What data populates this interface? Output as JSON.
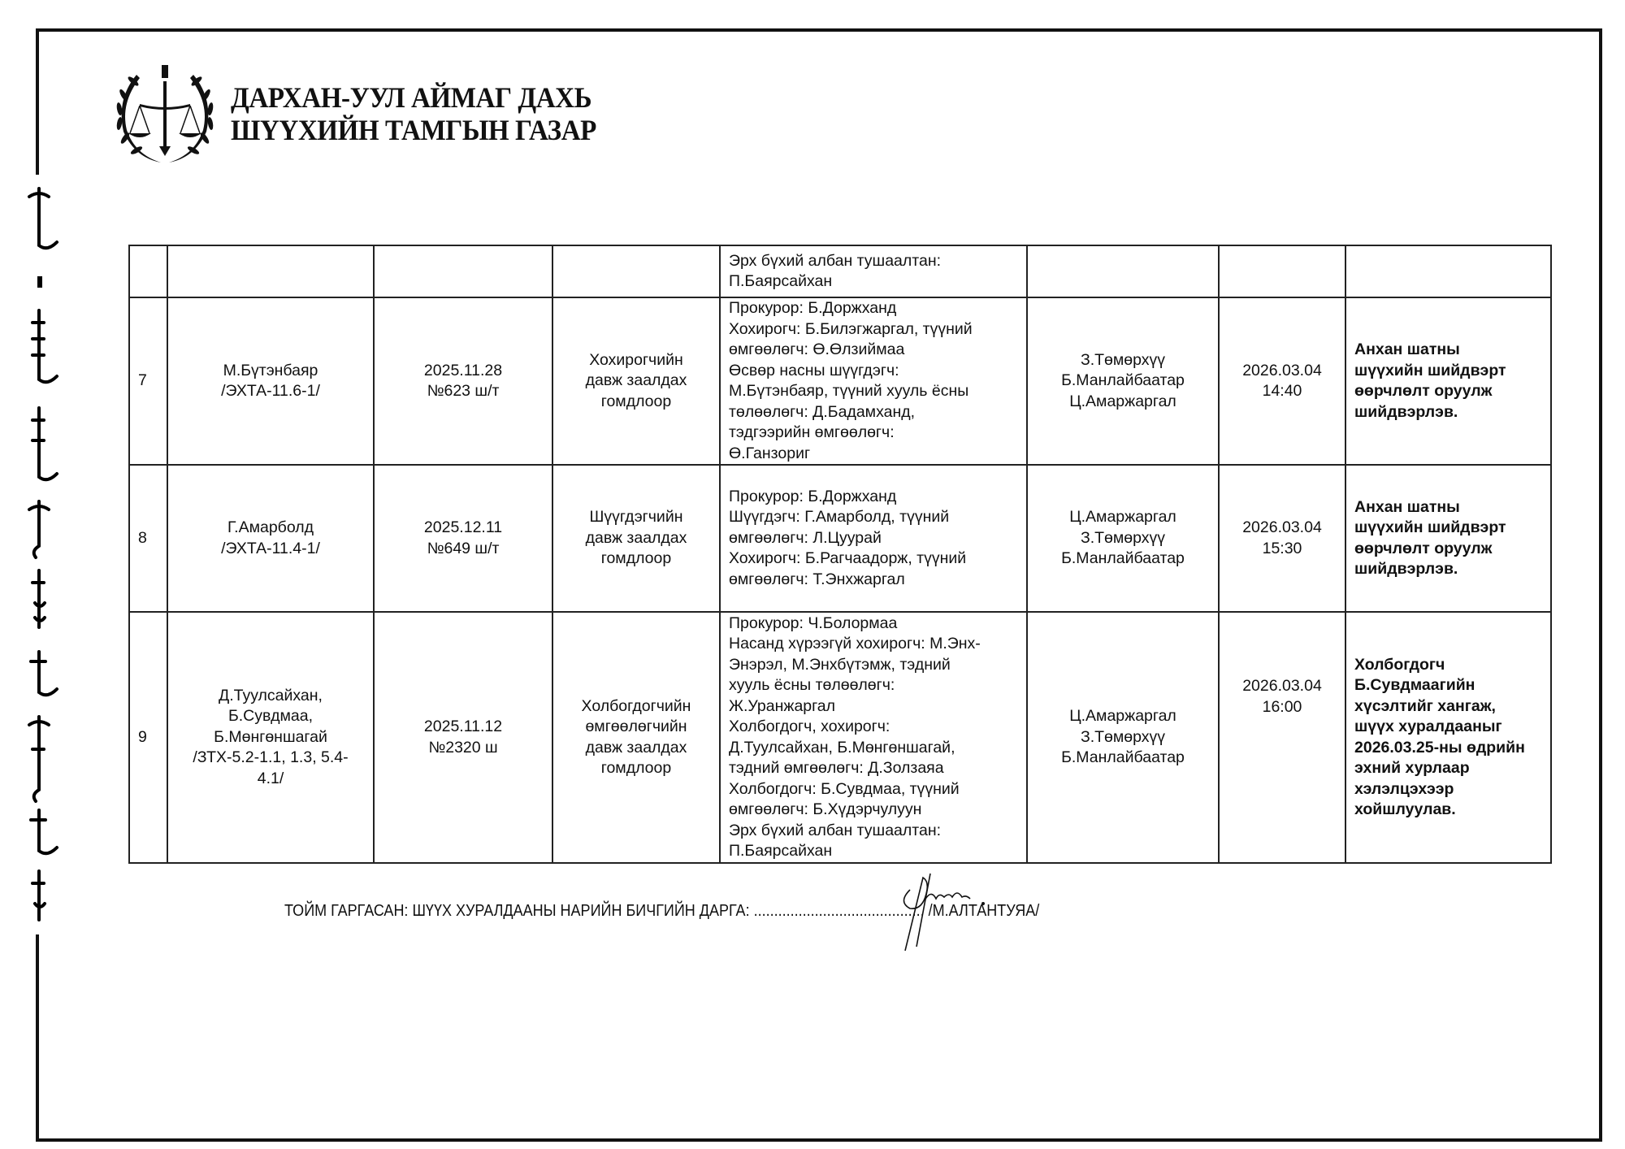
{
  "header": {
    "org_line1": "ДАРХАН-УУЛ АЙМАГ ДАХЬ",
    "org_line2": "ШҮҮХИЙН ТАМГЫН ГАЗАР",
    "logo_icon": "court-emblem-scales-wreath"
  },
  "table": {
    "rows": [
      {
        "num": "",
        "defendant": [],
        "decision": [],
        "reason": [],
        "parties": [
          "Эрх бүхий албан тушаалтан:",
          "П.Баярсайхан"
        ],
        "judges": [],
        "datetime": [],
        "result": []
      },
      {
        "num": "7",
        "defendant": [
          "М.Бүтэнбаяр",
          "/ЭХТА-11.6-1/"
        ],
        "decision": [
          "2025.11.28",
          "№623 ш/т"
        ],
        "reason": [
          "Хохирогчийн",
          "давж заалдах",
          "гомдлоор"
        ],
        "parties": [
          "Прокурор: Б.Доржханд",
          "Хохирогч: Б.Билэгжаргал, түүний",
          "өмгөөлөгч: Ө.Өлзиймаа",
          "Өсвөр насны шүүгдэгч:",
          "М.Бүтэнбаяр, түүний хууль ёсны",
          "төлөөлөгч: Д.Бадамханд,",
          "тэдгээрийн өмгөөлөгч:",
          "Ө.Ганзориг"
        ],
        "judges": [
          "З.Төмөрхүү",
          "Б.Манлайбаатар",
          "Ц.Амаржаргал"
        ],
        "datetime": [
          "2026.03.04",
          "14:40"
        ],
        "result": [
          "Анхан шатны",
          "шүүхийн шийдвэрт",
          "өөрчлөлт оруулж",
          "шийдвэрлэв."
        ]
      },
      {
        "num": "8",
        "defendant": [
          "Г.Амарболд",
          "/ЭХТА-11.4-1/"
        ],
        "decision": [
          "2025.12.11",
          "№649 ш/т"
        ],
        "reason": [
          "Шүүгдэгчийн",
          "давж заалдах",
          "гомдлоор"
        ],
        "parties": [
          "Прокурор: Б.Доржханд",
          "Шүүгдэгч: Г.Амарболд, түүний",
          "өмгөөлөгч: Л.Цуурай",
          "Хохирогч: Б.Рагчаадорж, түүний",
          "өмгөөлөгч: Т.Энхжаргал"
        ],
        "judges": [
          "Ц.Амаржаргал",
          "З.Төмөрхүү",
          "Б.Манлайбаатар"
        ],
        "datetime": [
          "2026.03.04",
          "15:30"
        ],
        "result": [
          "Анхан шатны",
          "шүүхийн шийдвэрт",
          "өөрчлөлт оруулж",
          "шийдвэрлэв."
        ]
      },
      {
        "num": "9",
        "defendant": [
          "Д.Туулсайхан,",
          "Б.Сувдмаа,",
          "Б.Мөнгөншагай",
          "/ЗТХ-5.2-1.1, 1.3, 5.4-",
          "4.1/"
        ],
        "decision": [
          "2025.11.12",
          "№2320 ш"
        ],
        "reason": [
          "Холбогдогчийн",
          "өмгөөлөгчийн",
          "давж заалдах",
          "гомдлоор"
        ],
        "parties": [
          "Прокурор: Ч.Болормаа",
          "Насанд хүрээгүй хохирогч: М.Энх-",
          "Энэрэл, М.Энхбүтэмж, тэдний",
          "хууль ёсны төлөөлөгч:",
          "Ж.Уранжаргал",
          "Холбогдогч, хохирогч:",
          "Д.Туулсайхан, Б.Мөнгөншагай,",
          "тэдний өмгөөлөгч: Д.Золзаяа",
          "Холбогдогч: Б.Сувдмаа, түүний",
          "өмгөөлөгч: Б.Хүдэрчулуун",
          "Эрх бүхий албан тушаалтан:",
          "П.Баярсайхан"
        ],
        "judges": [
          "Ц.Амаржаргал",
          "З.Төмөрхүү",
          "Б.Манлайбаатар"
        ],
        "datetime": [
          "2026.03.04",
          "16:00"
        ],
        "result": [
          "Холбогдогч",
          "Б.Сувдмаагийн",
          "хүсэлтийг хангаж,",
          "шүүх хуралдааныг",
          "2026.03.25-ны өдрийн",
          "эхний хурлаар",
          "хэлэлцэхээр",
          "хойшлуулав."
        ]
      }
    ]
  },
  "footer": {
    "label": "ТОЙМ ГАРГАСАН: ШҮҮХ ХУРАЛДААНЫ НАРИЙН БИЧГИЙН ДАРГА:",
    "dots": "..........................................",
    "name": "/М.АЛТАНТУЯА/"
  }
}
